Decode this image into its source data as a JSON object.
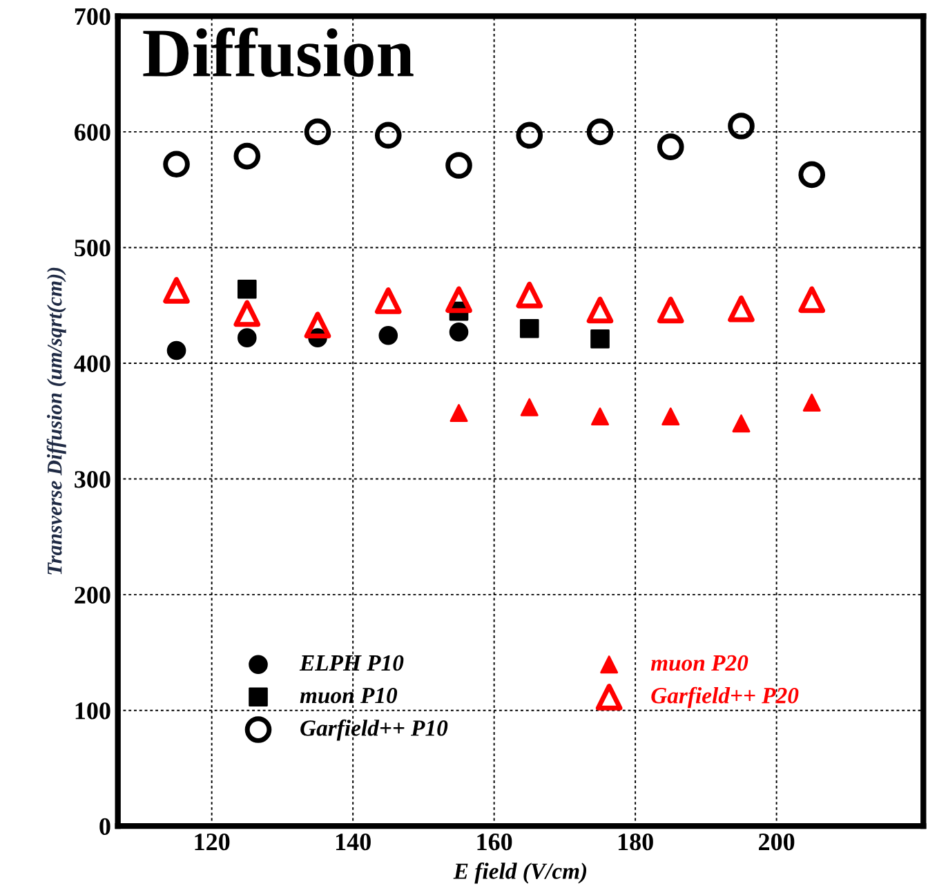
{
  "chart_data": {
    "type": "scatter",
    "title": "Diffusion",
    "xlabel": "E field (V/cm)",
    "ylabel": "Transverse Diffusion (um/sqrt(cm))",
    "xlim": [
      106.7,
      220.8
    ],
    "xticks": [
      120,
      140,
      160,
      180,
      200
    ],
    "ylim": [
      0,
      700
    ],
    "yticks": [
      0,
      100,
      200,
      300,
      400,
      500,
      600,
      700
    ],
    "grid": true,
    "legend": "bottom left",
    "series": [
      {
        "name": "ELPH P10",
        "color": "#000000",
        "marker": "circle",
        "x": [
          115,
          125,
          135,
          145,
          155
        ],
        "values": [
          411,
          422,
          422,
          424,
          427
        ]
      },
      {
        "name": "muon P10",
        "color": "#000000",
        "marker": "square",
        "x": [
          125,
          155,
          165,
          175
        ],
        "values": [
          464,
          445,
          430,
          421
        ]
      },
      {
        "name": "Garfield++ P10",
        "color": "#000000",
        "marker": "circle",
        "x": [
          115,
          125,
          135,
          145,
          155,
          165,
          175,
          185,
          195,
          205
        ],
        "values": [
          572,
          579,
          600,
          597,
          571,
          597,
          600,
          587,
          605,
          563
        ]
      },
      {
        "name": "muon P20",
        "color": "#ff0000",
        "marker": "triangle",
        "x": [
          155,
          165,
          175,
          185,
          195,
          205
        ],
        "values": [
          357,
          362,
          354,
          354,
          348,
          366
        ]
      },
      {
        "name": "Garfield++ P20",
        "color": "#ff0000",
        "marker": "triangle",
        "x": [
          115,
          125,
          135,
          145,
          155,
          165,
          175,
          185,
          195,
          205
        ],
        "values": [
          463,
          443,
          433,
          454,
          455,
          459,
          446,
          446,
          447,
          455
        ]
      }
    ]
  }
}
